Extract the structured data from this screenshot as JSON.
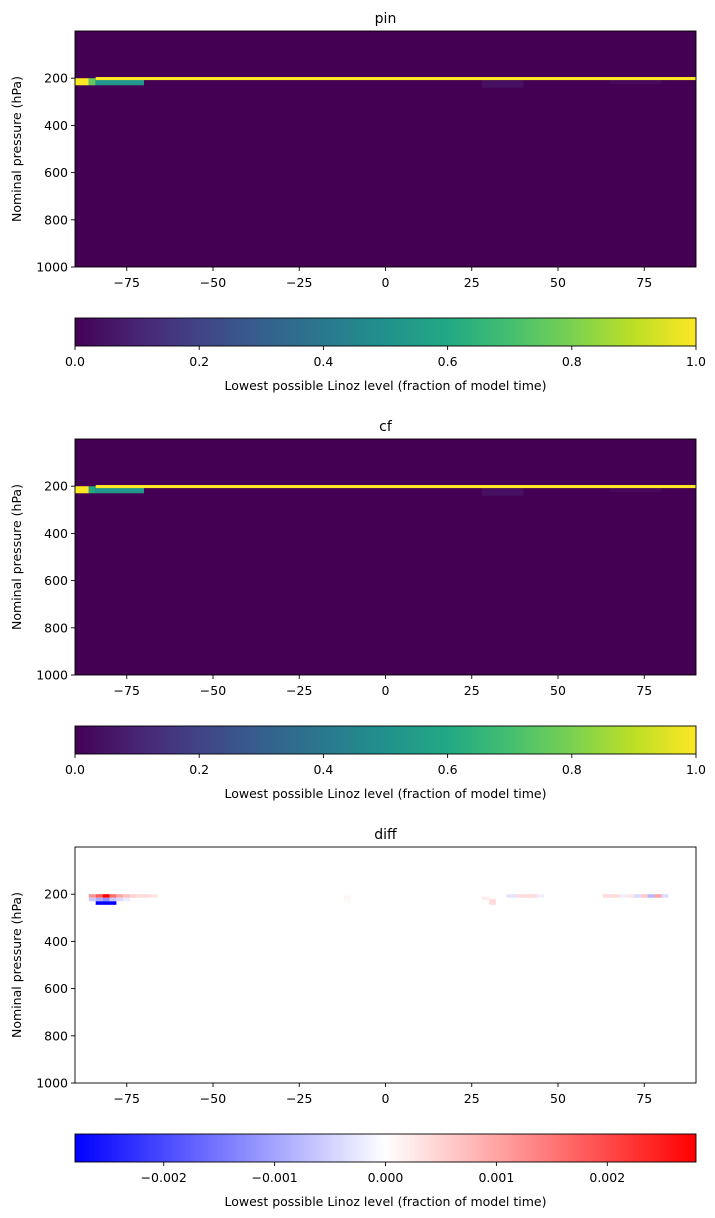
{
  "chart_data": [
    {
      "type": "heatmap",
      "title": "pin",
      "ylabel": "Nominal pressure (hPa)",
      "xlabel": "",
      "xlim": [
        -90,
        90
      ],
      "ylim": [
        1000,
        0
      ],
      "xticks": [
        -75,
        -50,
        -25,
        0,
        25,
        50,
        75
      ],
      "xtick_labels": [
        "−75",
        "−50",
        "−25",
        "0",
        "25",
        "50",
        "75"
      ],
      "yticks": [
        200,
        400,
        600,
        800,
        1000
      ],
      "ytick_labels": [
        "200",
        "400",
        "600",
        "800",
        "1000"
      ],
      "colormap": "viridis",
      "background_value": 0.0,
      "cells": [
        {
          "x0": -90,
          "x1": -86,
          "p0": 200,
          "p1": 230,
          "value": 1.0
        },
        {
          "x0": -86,
          "x1": -84,
          "p0": 200,
          "p1": 230,
          "value": 0.75
        },
        {
          "x0": -84,
          "x1": -70,
          "p0": 200,
          "p1": 230,
          "value": 0.52
        },
        {
          "x0": 28,
          "x1": 40,
          "p0": 205,
          "p1": 240,
          "value": 0.04
        },
        {
          "x0": 65,
          "x1": 80,
          "p0": 205,
          "p1": 225,
          "value": 0.02
        },
        {
          "x0": -84,
          "x1": 90,
          "p0": 195,
          "p1": 208,
          "value": 1.0
        }
      ],
      "colorbar": {
        "label": "Lowest possible Linoz level (fraction of model time)",
        "range": [
          0.0,
          1.0
        ],
        "ticks": [
          0.0,
          0.2,
          0.4,
          0.6,
          0.8,
          1.0
        ],
        "tick_labels": [
          "0.0",
          "0.2",
          "0.4",
          "0.6",
          "0.8",
          "1.0"
        ]
      }
    },
    {
      "type": "heatmap",
      "title": "cf",
      "ylabel": "Nominal pressure (hPa)",
      "xlabel": "",
      "xlim": [
        -90,
        90
      ],
      "ylim": [
        1000,
        0
      ],
      "xticks": [
        -75,
        -50,
        -25,
        0,
        25,
        50,
        75
      ],
      "xtick_labels": [
        "−75",
        "−50",
        "−25",
        "0",
        "25",
        "50",
        "75"
      ],
      "yticks": [
        200,
        400,
        600,
        800,
        1000
      ],
      "ytick_labels": [
        "200",
        "400",
        "600",
        "800",
        "1000"
      ],
      "colormap": "viridis",
      "background_value": 0.0,
      "cells": [
        {
          "x0": -90,
          "x1": -86,
          "p0": 200,
          "p1": 230,
          "value": 1.0
        },
        {
          "x0": -86,
          "x1": -84,
          "p0": 200,
          "p1": 230,
          "value": 0.6
        },
        {
          "x0": -84,
          "x1": -70,
          "p0": 200,
          "p1": 230,
          "value": 0.52
        },
        {
          "x0": 28,
          "x1": 40,
          "p0": 205,
          "p1": 240,
          "value": 0.04
        },
        {
          "x0": 65,
          "x1": 80,
          "p0": 205,
          "p1": 225,
          "value": 0.02
        },
        {
          "x0": -84,
          "x1": 90,
          "p0": 195,
          "p1": 208,
          "value": 1.0
        }
      ],
      "colorbar": {
        "label": "Lowest possible Linoz level (fraction of model time)",
        "range": [
          0.0,
          1.0
        ],
        "ticks": [
          0.0,
          0.2,
          0.4,
          0.6,
          0.8,
          1.0
        ],
        "tick_labels": [
          "0.0",
          "0.2",
          "0.4",
          "0.6",
          "0.8",
          "1.0"
        ]
      }
    },
    {
      "type": "heatmap",
      "title": "diff",
      "ylabel": "Nominal pressure (hPa)",
      "xlabel": "",
      "xlim": [
        -90,
        90
      ],
      "ylim": [
        1000,
        0
      ],
      "xticks": [
        -75,
        -50,
        -25,
        0,
        25,
        50,
        75
      ],
      "xtick_labels": [
        "−75",
        "−50",
        "−25",
        "0",
        "25",
        "50",
        "75"
      ],
      "yticks": [
        200,
        400,
        600,
        800,
        1000
      ],
      "ytick_labels": [
        "200",
        "400",
        "600",
        "800",
        "1000"
      ],
      "colormap": "bwr",
      "background_value": 0.0,
      "cells": [
        {
          "x0": -86,
          "x1": -84,
          "p0": 200,
          "p1": 215,
          "value": 0.0012
        },
        {
          "x0": -84,
          "x1": -82,
          "p0": 200,
          "p1": 215,
          "value": 0.0018
        },
        {
          "x0": -82,
          "x1": -80,
          "p0": 200,
          "p1": 215,
          "value": 0.0028
        },
        {
          "x0": -80,
          "x1": -78,
          "p0": 200,
          "p1": 215,
          "value": 0.0016
        },
        {
          "x0": -78,
          "x1": -76,
          "p0": 200,
          "p1": 215,
          "value": 0.001
        },
        {
          "x0": -76,
          "x1": -74,
          "p0": 200,
          "p1": 215,
          "value": 0.0007
        },
        {
          "x0": -74,
          "x1": -72,
          "p0": 200,
          "p1": 215,
          "value": 0.0005
        },
        {
          "x0": -72,
          "x1": -70,
          "p0": 200,
          "p1": 215,
          "value": 0.0004
        },
        {
          "x0": -70,
          "x1": -68,
          "p0": 200,
          "p1": 215,
          "value": 0.0004
        },
        {
          "x0": -68,
          "x1": -66,
          "p0": 200,
          "p1": 215,
          "value": 0.0003
        },
        {
          "x0": -86,
          "x1": -84,
          "p0": 215,
          "p1": 230,
          "value": -0.0006
        },
        {
          "x0": -84,
          "x1": -82,
          "p0": 215,
          "p1": 230,
          "value": -0.0009
        },
        {
          "x0": -82,
          "x1": -80,
          "p0": 215,
          "p1": 230,
          "value": -0.0012
        },
        {
          "x0": -80,
          "x1": -78,
          "p0": 215,
          "p1": 230,
          "value": -0.0006
        },
        {
          "x0": -78,
          "x1": -76,
          "p0": 215,
          "p1": 230,
          "value": -0.0004
        },
        {
          "x0": -76,
          "x1": -74,
          "p0": 215,
          "p1": 230,
          "value": -0.0002
        },
        {
          "x0": -84,
          "x1": -78,
          "p0": 230,
          "p1": 245,
          "value": -0.0028
        },
        {
          "x0": -12,
          "x1": -10,
          "p0": 205,
          "p1": 230,
          "value": 0.0001
        },
        {
          "x0": 28,
          "x1": 30,
          "p0": 210,
          "p1": 225,
          "value": 0.0002
        },
        {
          "x0": 30,
          "x1": 32,
          "p0": 220,
          "p1": 245,
          "value": 0.0004
        },
        {
          "x0": 35,
          "x1": 38,
          "p0": 200,
          "p1": 215,
          "value": -0.0003
        },
        {
          "x0": 38,
          "x1": 44,
          "p0": 200,
          "p1": 215,
          "value": 0.0004
        },
        {
          "x0": 44,
          "x1": 46,
          "p0": 200,
          "p1": 215,
          "value": -0.0002
        },
        {
          "x0": 63,
          "x1": 68,
          "p0": 200,
          "p1": 215,
          "value": 0.0004
        },
        {
          "x0": 68,
          "x1": 70,
          "p0": 200,
          "p1": 215,
          "value": -0.0002
        },
        {
          "x0": 70,
          "x1": 72,
          "p0": 200,
          "p1": 215,
          "value": 0.0003
        },
        {
          "x0": 72,
          "x1": 74,
          "p0": 200,
          "p1": 215,
          "value": -0.0004
        },
        {
          "x0": 74,
          "x1": 76,
          "p0": 200,
          "p1": 215,
          "value": 0.0006
        },
        {
          "x0": 76,
          "x1": 78,
          "p0": 200,
          "p1": 215,
          "value": -0.0008
        },
        {
          "x0": 78,
          "x1": 80,
          "p0": 200,
          "p1": 215,
          "value": 0.001
        },
        {
          "x0": 80,
          "x1": 82,
          "p0": 200,
          "p1": 215,
          "value": -0.0004
        }
      ],
      "colorbar": {
        "label": "Lowest possible Linoz level (fraction of model time)",
        "range": [
          -0.0028,
          0.0028
        ],
        "ticks": [
          -0.002,
          -0.001,
          0.0,
          0.001,
          0.002
        ],
        "tick_labels": [
          "−0.002",
          "−0.001",
          "0.000",
          "0.001",
          "0.002"
        ]
      }
    }
  ]
}
